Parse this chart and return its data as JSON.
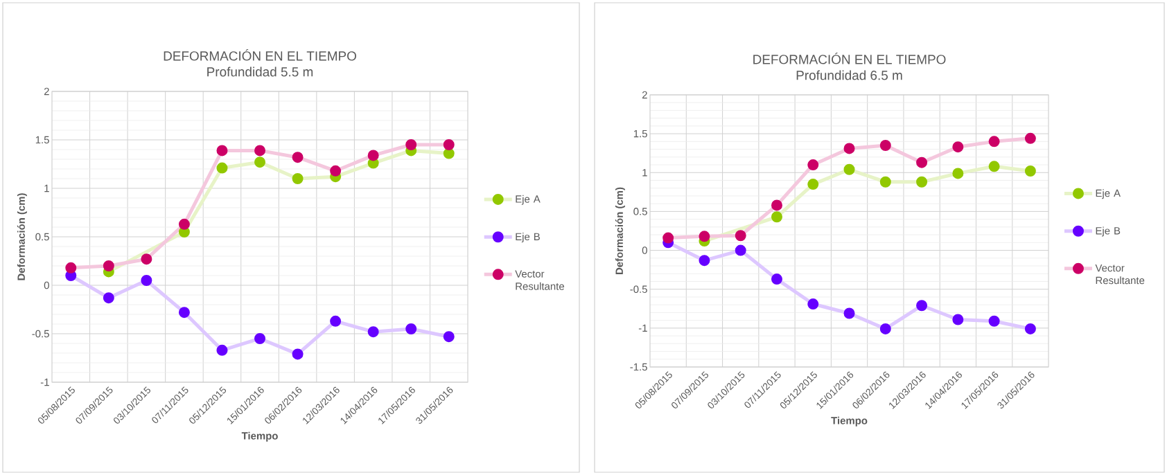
{
  "chart_data": [
    {
      "type": "line",
      "title": "DEFORMACIÓN EN EL TIEMPO",
      "subtitle": "Profundidad 5.5 m",
      "xlabel": "Tiempo",
      "ylabel": "Deformación (cm)",
      "categories": [
        "05/08/2015",
        "07/09/2015",
        "03/10/2015",
        "07/11/2015",
        "05/12/2015",
        "15/01/2016",
        "06/02/2016",
        "12/03/2016",
        "14/04/2016",
        "17/05/2016",
        "31/05/2016"
      ],
      "series": [
        {
          "name": "Eje A",
          "color": "#92c800",
          "values": [
            null,
            0.14,
            null,
            0.55,
            1.21,
            1.27,
            1.1,
            1.12,
            1.26,
            1.39,
            1.36
          ]
        },
        {
          "name": "Eje B",
          "color": "#6600ff",
          "values": [
            0.1,
            -0.13,
            0.05,
            -0.28,
            -0.67,
            -0.55,
            -0.71,
            -0.37,
            -0.48,
            -0.45,
            -0.53
          ]
        },
        {
          "name": "Vector Resultante",
          "color": "#cc0066",
          "values": [
            0.18,
            0.2,
            0.27,
            0.63,
            1.39,
            1.39,
            1.32,
            1.18,
            1.34,
            1.45,
            1.45
          ]
        }
      ],
      "ylim": [
        -1,
        2
      ],
      "yticks": [
        -1,
        -0.5,
        0,
        0.5,
        1,
        1.5,
        2
      ],
      "grid": true,
      "legend": "right",
      "marker": "circle"
    },
    {
      "type": "line",
      "title": "DEFORMACIÓN EN EL TIEMPO",
      "subtitle": "Profundidad 6.5 m",
      "xlabel": "Tiempo",
      "ylabel": "Deformación (cm)",
      "categories": [
        "05/08/2015",
        "07/09/2015",
        "03/10/2015",
        "07/11/2015",
        "05/12/2015",
        "15/01/2016",
        "06/02/2016",
        "12/03/2016",
        "14/04/2016",
        "17/05/2016",
        "31/05/2016"
      ],
      "series": [
        {
          "name": "Eje A",
          "color": "#92c800",
          "values": [
            null,
            0.12,
            null,
            0.43,
            0.85,
            1.04,
            0.88,
            0.88,
            0.99,
            1.08,
            1.02
          ]
        },
        {
          "name": "Eje B",
          "color": "#6600ff",
          "values": [
            0.1,
            -0.13,
            0.0,
            -0.37,
            -0.69,
            -0.81,
            -1.01,
            -0.71,
            -0.89,
            -0.91,
            -1.01
          ]
        },
        {
          "name": "Vector Resultante",
          "color": "#cc0066",
          "values": [
            0.16,
            0.18,
            0.19,
            0.58,
            1.1,
            1.31,
            1.35,
            1.13,
            1.33,
            1.4,
            1.44
          ]
        }
      ],
      "ylim": [
        -1.5,
        2
      ],
      "yticks": [
        -1.5,
        -1,
        -0.5,
        0,
        0.5,
        1,
        1.5,
        2
      ],
      "grid": true,
      "legend": "right",
      "marker": "circle"
    }
  ]
}
